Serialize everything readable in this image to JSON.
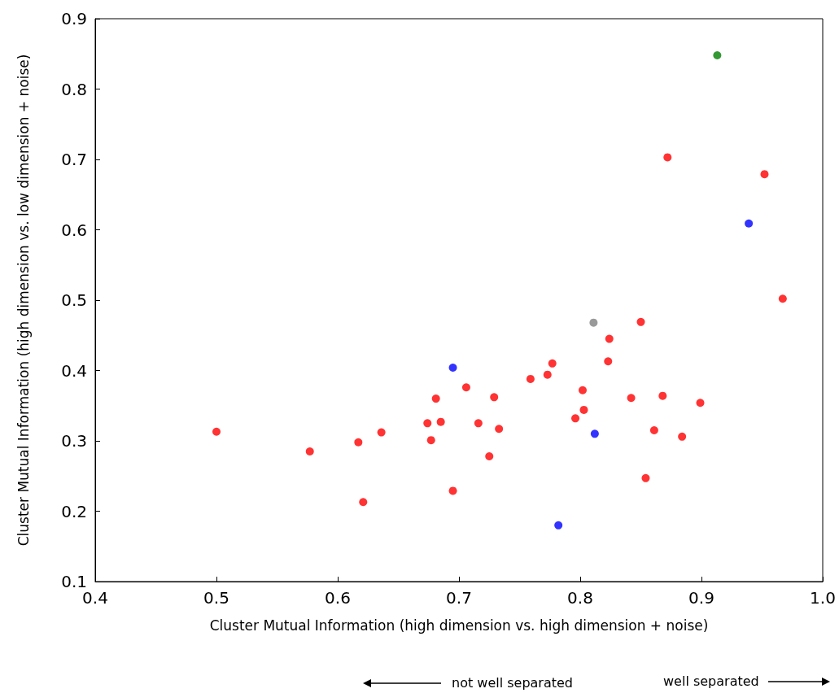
{
  "chart_data": {
    "type": "scatter",
    "xlabel": "Cluster Mutual Information (high dimension vs. high dimension + noise)",
    "ylabel": "Cluster Mutual Information (high dimension vs. low dimension + noise)",
    "xlim": [
      0.4,
      1.0
    ],
    "xticks": [
      {
        "value": 0.4,
        "label": "0.4"
      },
      {
        "value": 0.5,
        "label": "0.5"
      },
      {
        "value": 0.6,
        "label": "0.6"
      },
      {
        "value": 0.7,
        "label": "0.7"
      },
      {
        "value": 0.8,
        "label": "0.8"
      },
      {
        "value": 0.9,
        "label": "0.9"
      },
      {
        "value": 1.0,
        "label": "1.0"
      }
    ],
    "ylim": [
      0.1,
      0.9
    ],
    "yticks": [
      0.1,
      0.2,
      0.3,
      0.4,
      0.5,
      0.6,
      0.7,
      0.8,
      0.9
    ],
    "grid": false,
    "marker": "circle",
    "annotations": [
      "not well separated",
      "well separated"
    ],
    "series": [
      {
        "color": "#ff0000",
        "x": [
          0.5,
          0.577,
          0.617,
          0.621,
          0.636,
          0.674,
          0.677,
          0.681,
          0.685,
          0.695,
          0.706,
          0.716,
          0.725,
          0.729,
          0.733,
          0.759,
          0.773,
          0.777,
          0.796,
          0.802,
          0.803,
          0.823,
          0.824,
          0.842,
          0.85,
          0.854,
          0.861,
          0.868,
          0.872,
          0.884,
          0.899,
          0.952,
          0.967
        ],
        "values": [
          0.313,
          0.285,
          0.298,
          0.213,
          0.312,
          0.325,
          0.301,
          0.36,
          0.327,
          0.229,
          0.376,
          0.325,
          0.278,
          0.362,
          0.317,
          0.388,
          0.394,
          0.41,
          0.332,
          0.372,
          0.344,
          0.413,
          0.445,
          0.361,
          0.469,
          0.247,
          0.315,
          0.364,
          0.703,
          0.306,
          0.354,
          0.679,
          0.502
        ]
      },
      {
        "color": "#0000ff",
        "x": [
          0.695,
          0.812,
          0.782,
          0.939
        ],
        "values": [
          0.404,
          0.31,
          0.18,
          0.609
        ]
      },
      {
        "color": "#808080",
        "x": [
          0.811
        ],
        "values": [
          0.468
        ]
      },
      {
        "color": "#008000",
        "x": [
          0.913
        ],
        "values": [
          0.848
        ]
      }
    ]
  }
}
